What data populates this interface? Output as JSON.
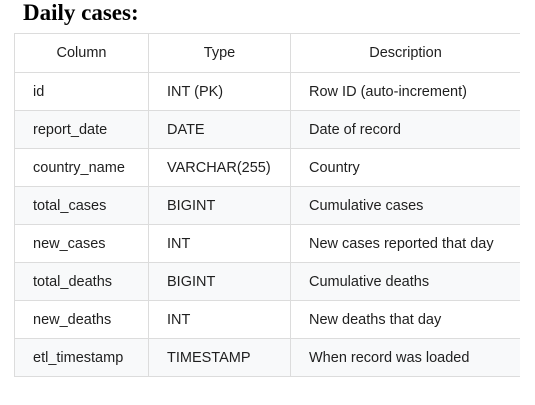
{
  "heading": "Daily cases:",
  "table": {
    "headers": [
      "Column",
      "Type",
      "Description"
    ],
    "rows": [
      [
        "id",
        "INT (PK)",
        "Row ID (auto-increment)"
      ],
      [
        "report_date",
        "DATE",
        "Date of record"
      ],
      [
        "country_name",
        "VARCHAR(255)",
        "Country"
      ],
      [
        "total_cases",
        "BIGINT",
        "Cumulative cases"
      ],
      [
        "new_cases",
        "INT",
        "New cases reported that day"
      ],
      [
        "total_deaths",
        "BIGINT",
        "Cumulative deaths"
      ],
      [
        "new_deaths",
        "INT",
        "New deaths that day"
      ],
      [
        "etl_timestamp",
        "TIMESTAMP",
        "When record was loaded"
      ]
    ]
  }
}
